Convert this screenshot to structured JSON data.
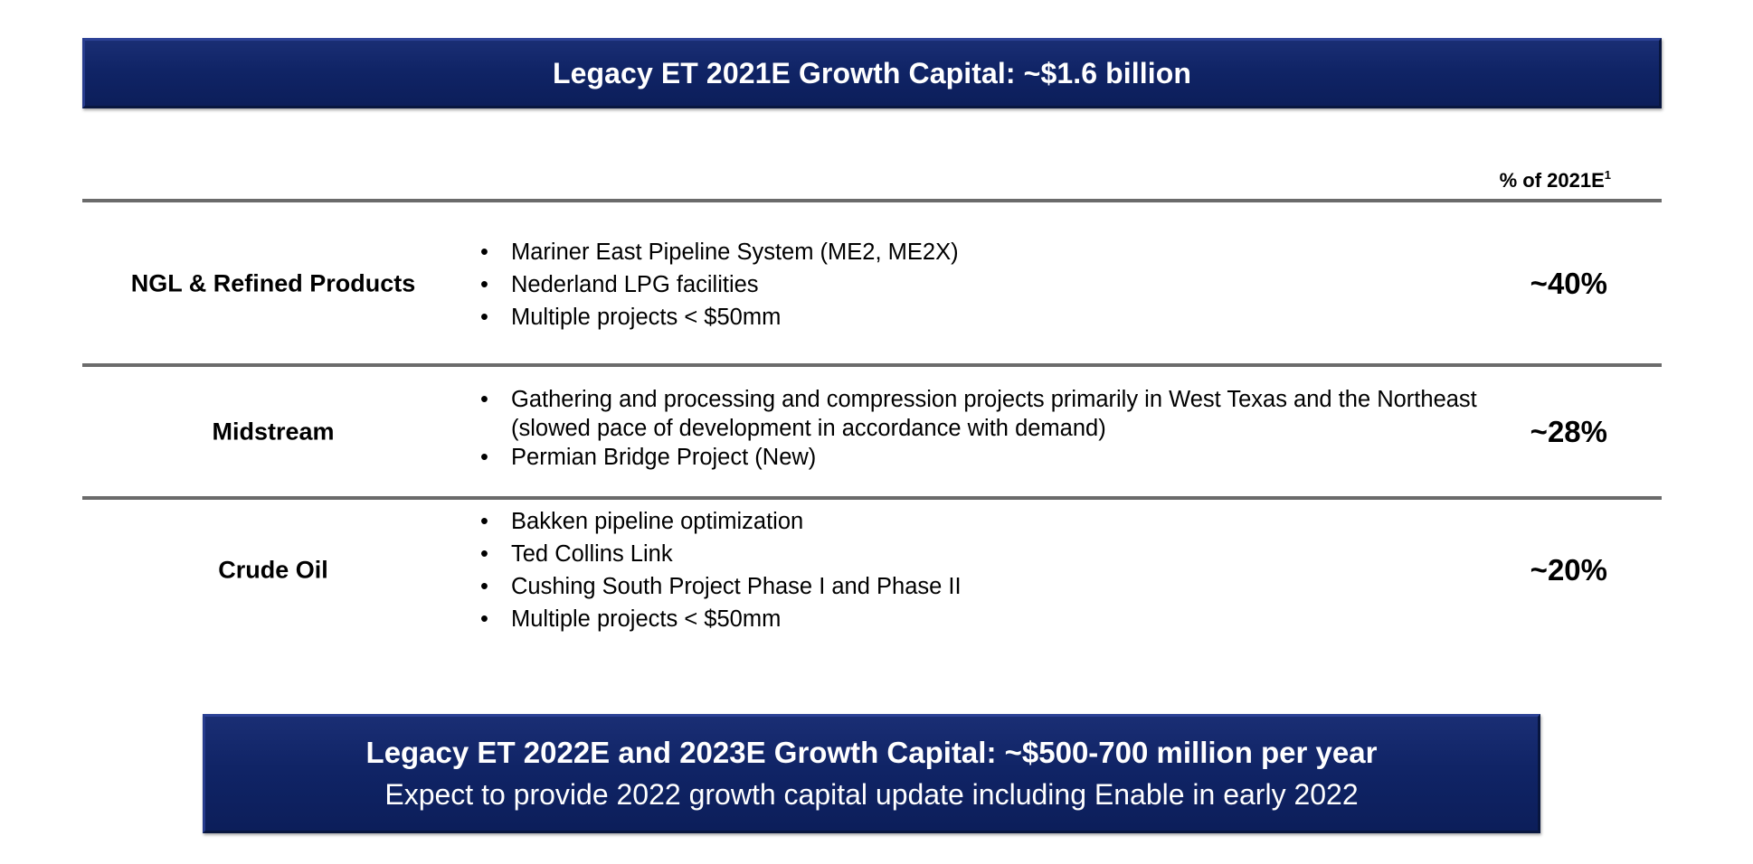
{
  "top_banner": {
    "title": "Legacy ET 2021E Growth Capital: ~$1.6 billion"
  },
  "table": {
    "column_header": "% of 2021E",
    "column_header_footnote": "1",
    "rows": [
      {
        "category": "NGL & Refined Products",
        "bullets": [
          "Mariner East Pipeline System (ME2, ME2X)",
          "Nederland LPG facilities",
          "Multiple projects < $50mm"
        ],
        "percent": "~40%"
      },
      {
        "category": "Midstream",
        "bullets": [
          "Gathering and processing and compression projects primarily in West Texas and the Northeast (slowed pace of development in accordance with demand)",
          "Permian Bridge Project (New)"
        ],
        "percent": "~28%"
      },
      {
        "category": "Crude Oil",
        "bullets": [
          "Bakken pipeline optimization",
          "Ted Collins Link",
          "Cushing South Project Phase I and Phase II",
          "Multiple projects < $50mm"
        ],
        "percent": "~20%"
      }
    ]
  },
  "bottom_banner": {
    "line1": "Legacy ET 2022E and 2023E Growth Capital: ~$500-700 million per year",
    "line2": "Expect to provide 2022 growth capital update including Enable in early 2022"
  },
  "colors": {
    "banner_navy": "#102466",
    "rule_gray": "#6b6b6b"
  }
}
